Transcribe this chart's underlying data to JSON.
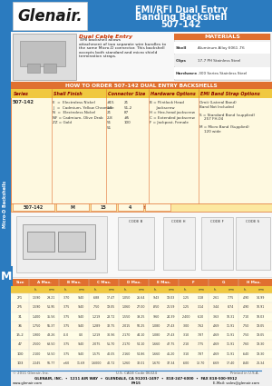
{
  "title_line1": "EMI/RFI Dual Entry",
  "title_line2": "Banding Backshell",
  "title_line3": "507-142",
  "header_bg": "#2b7bbf",
  "header_text_color": "#ffffff",
  "logo_text": "Glenair.",
  "side_label": "Micro-D\nBackshells",
  "side_bg": "#2b7bbf",
  "description_title": "Dual Cable Entry",
  "description_body": " EMI backshell allows\nattachment of two separate wire bundles to\nthe same Micro-D connector. This backshell\naccepts both standard and micro shield\ntermination straps.",
  "materials_title": "MATERIALS",
  "materials_bg": "#e07030",
  "materials_rows": [
    [
      "Shell",
      "Aluminum Alloy 6061 -T6"
    ],
    [
      "Clips",
      "17-7 PH Stainless Steel"
    ],
    [
      "Hardware",
      ".300 Series Stainless Steel"
    ]
  ],
  "ordering_title": "HOW TO ORDER 507-142 DUAL ENTRY BACKSHELLS",
  "ordering_bg": "#e07030",
  "ordering_header_bg": "#f0c840",
  "col_headers": [
    "Series",
    "Shell Finish",
    "Connector Size",
    "Hardware Options",
    "EMI Band Strap Options"
  ],
  "series_val": "507-142",
  "finish_items": [
    "E  =  Electroless Nickel",
    "J   =  Cadmium, Yellow Chromate",
    "N  =  Electroless Nickel",
    "NF = Cadmium, Olive Drab",
    "ZZ = Gold"
  ],
  "connector_items": [
    "#15   21",
    "1-8   51-2",
    "21    87",
    "2-8   #5",
    "51    100",
    "51"
  ],
  "hardware_items": [
    "B = Flintlock Head",
    "      Jackscrew",
    "H = Hex-head jackscrew",
    "C = Extended jackscrew",
    "F = Jackpost, Female"
  ],
  "emi_items": [
    "Omit (Lateral Band)",
    "Band Not Included",
    "",
    "S = Standard Band (supplied)",
    "    257 FH-04",
    "",
    "M = Micro Band (Supplied)",
    "    120 wide"
  ],
  "sample_label": "Sample Part Number",
  "sample_values": [
    "507-142",
    "M",
    "15",
    "4",
    ""
  ],
  "dim_col_groups": [
    "Size",
    "A Max.",
    "B Max.",
    "C Max.",
    "D Max.",
    "E Max.",
    "F",
    "G",
    "H Max."
  ],
  "dim_rows": [
    [
      "2/1",
      "1.590",
      "29.21",
      ".370",
      "9.40",
      ".688",
      "17.47",
      "1.050",
      "26.64",
      ".943",
      "19.03",
      ".125",
      "3.18",
      ".261",
      "7.75",
      ".490",
      "14.99"
    ],
    [
      "2/5",
      "1.590",
      "51.95",
      ".375",
      "9.40",
      ".750",
      "19.05",
      "1.060",
      "27.00",
      ".850",
      "21.59",
      ".125",
      "3.14",
      ".344",
      "8.74",
      ".490",
      "10.91"
    ],
    [
      "31",
      "1.400",
      "35.56",
      ".375",
      "9.40",
      "1.219",
      "28.72",
      "1.550",
      "39.25",
      ".960",
      "24.39",
      ".2400",
      "6.10",
      ".363",
      "10.31",
      ".710",
      "18.03"
    ],
    [
      "36",
      "1.750",
      "55.37",
      ".375",
      "9.40",
      "1.289",
      "32.75",
      "2.015",
      "50.25",
      "1.080",
      "27.43",
      ".300",
      "7.62",
      ".469",
      "11.91",
      ".750",
      "19.05"
    ],
    [
      "15-2",
      "1.900",
      "48.26",
      ".0.0",
      "0.0",
      "1.219",
      "30.96",
      "2.170",
      "44.10",
      "1.080",
      "27.43",
      ".310",
      "7.87",
      ".469",
      "11.91",
      ".750",
      "19.05"
    ],
    [
      "47",
      "2.500",
      "63.50",
      ".375",
      "9.40",
      "2.075",
      "51.70",
      "2.170",
      "54.10",
      "1.660",
      "47.75",
      ".210",
      "7.75",
      ".469",
      "11.91",
      ".760",
      "19.30"
    ],
    [
      "100",
      "2.100",
      "53.50",
      ".375",
      "9.40",
      "1.575",
      "40.05",
      "2.160",
      "54.86",
      "1.660",
      "41.20",
      ".310",
      "7.87",
      ".469",
      "11.91",
      ".640",
      "19.30"
    ],
    [
      "103",
      "2.245",
      "56.77",
      ".e60",
      "11.69",
      "1.6000",
      "40.72",
      "1.260",
      "32.01",
      "1.670",
      "37.34",
      ".600",
      "12.70",
      ".669",
      "17.40",
      ".840",
      "21.34"
    ]
  ],
  "footer_copyright": "© 2011 Glenair, Inc.",
  "footer_cage": "U.S. CAGE Code 06324",
  "footer_printed": "Printed in U.S.A.",
  "footer_address": "GLENAIR, INC.  •  1211 AIR WAY  •  GLENDALE, CA 91201-2497  •  818-247-6000  •  FAX 818-500-9912",
  "footer_web": "www.glenair.com",
  "footer_page": "M-15",
  "footer_email": "E-Mail: sales@glenair.com",
  "bg_color": "#f5f5f5",
  "page_bg": "#ffffff",
  "m_label_bg": "#2b7bbf",
  "orange": "#e07030",
  "yellow": "#f0c840",
  "light_yellow": "#fef9e0",
  "mid_yellow": "#fce8a0",
  "blue": "#2b7bbf",
  "dark_border": "#888888",
  "footer_line_color": "#2b7bbf"
}
